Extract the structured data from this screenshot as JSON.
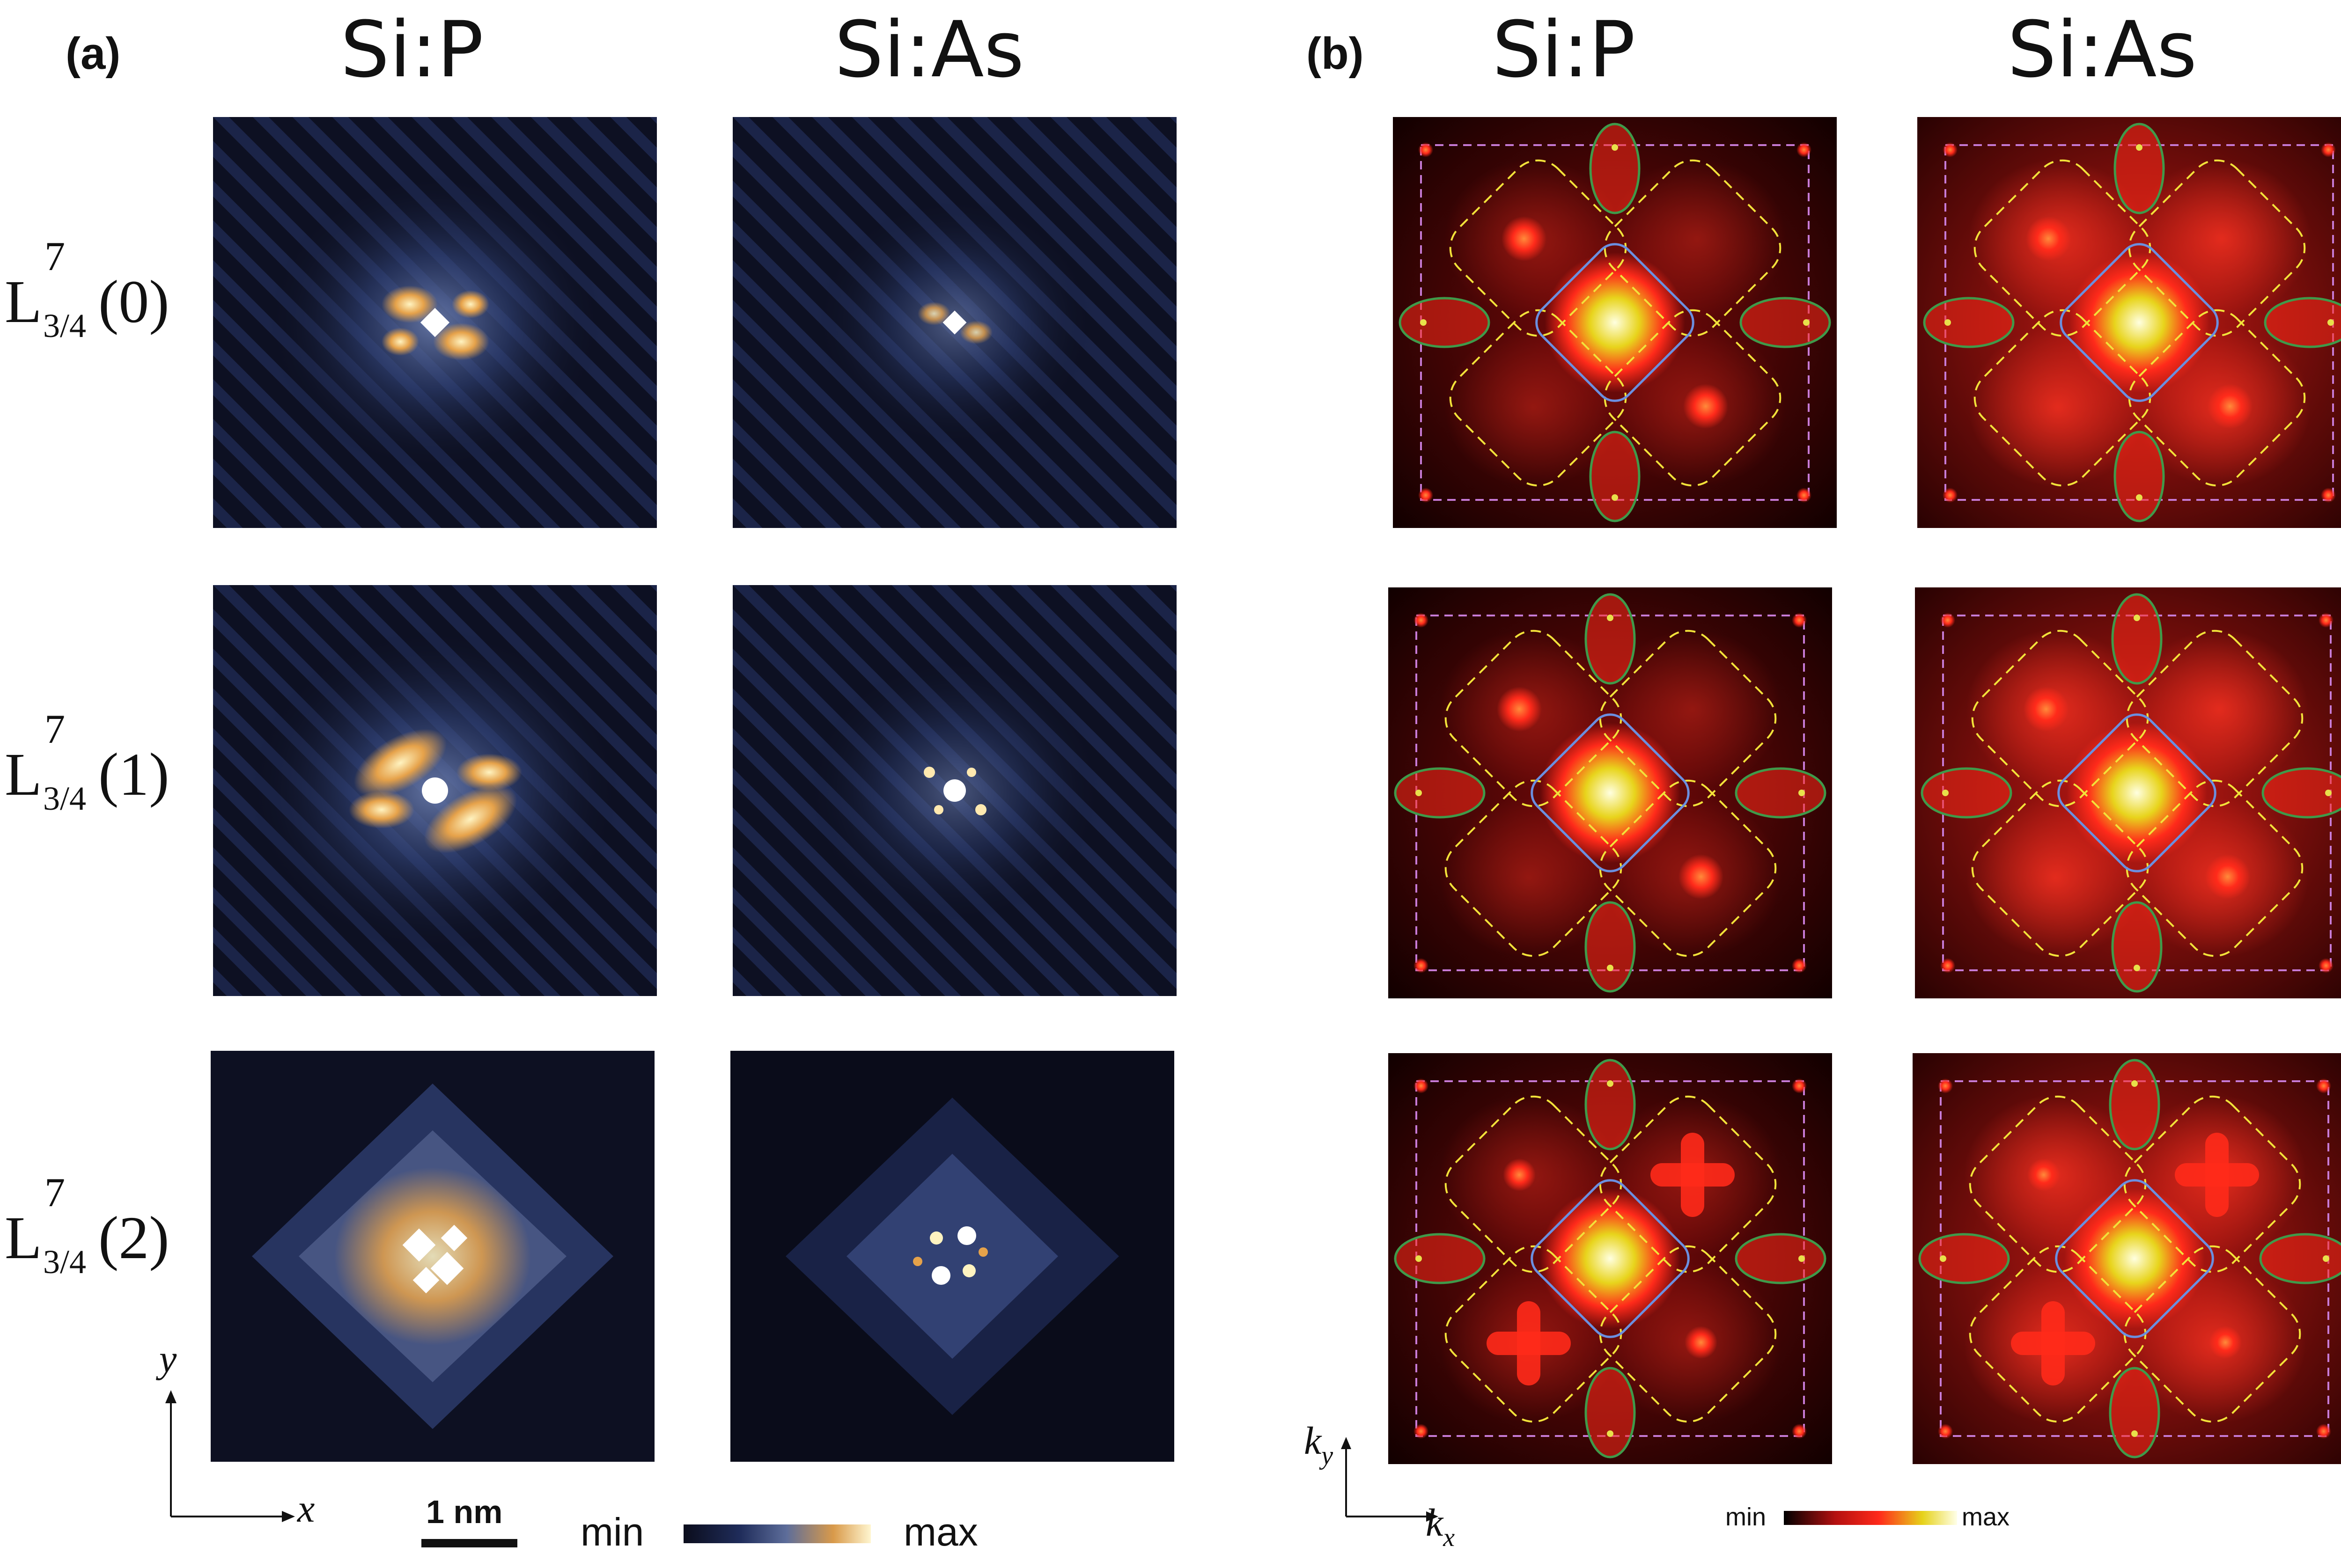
{
  "panel_a": {
    "letter": "(a)",
    "col_titles": [
      "Si:P",
      "Si:As"
    ],
    "rows": [
      {
        "L": "L",
        "sup": "7",
        "sub": "3/4",
        "arg": "(0)"
      },
      {
        "L": "L",
        "sup": "7",
        "sub": "3/4",
        "arg": "(1)"
      },
      {
        "L": "L",
        "sup": "7",
        "sub": "3/4",
        "arg": "(2)"
      }
    ],
    "axis_x": "x",
    "axis_y": "y",
    "scalebar_label": "1 nm",
    "colorbar_min": "min",
    "colorbar_max": "max",
    "colormap": [
      "#0b0d1c",
      "#1f2c5a",
      "#5d6d9a",
      "#d99a4a",
      "#fff6d0"
    ]
  },
  "panel_b": {
    "letter": "(b)",
    "col_titles": [
      "Si:P",
      "Si:As"
    ],
    "axis_x": "k",
    "axis_x_sub": "x",
    "axis_y": "k",
    "axis_y_sub": "y",
    "colorbar_min": "min",
    "colorbar_max": "max",
    "colormap": [
      "#000000",
      "#b51010",
      "#ff2a1a",
      "#e6d21a",
      "#ffffe8"
    ]
  }
}
